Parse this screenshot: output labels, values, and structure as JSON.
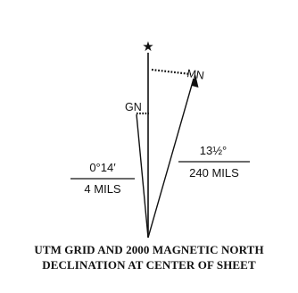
{
  "diagram": {
    "true_north_symbol": "★",
    "grid_north_label": "GN",
    "magnetic_north_label": "MN",
    "grid_declination": {
      "degrees_text": "0°14′",
      "mils_text": "4 MILS"
    },
    "magnetic_declination": {
      "degrees_text": "13½°",
      "mils_text": "240 MILS"
    },
    "caption_line_1": "UTM GRID AND 2000 MAGNETIC NORTH",
    "caption_line_2": "DECLINATION AT CENTER OF SHEET",
    "ink_color": "#111111"
  }
}
